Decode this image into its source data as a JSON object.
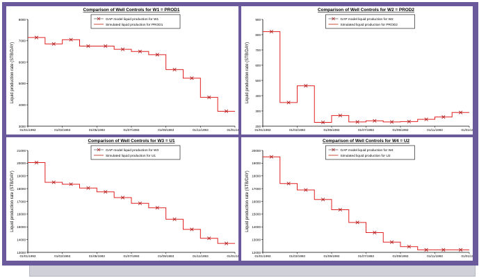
{
  "chart_data": [
    {
      "type": "line",
      "title": "Comparison of Well Controls for W1 = PROD1",
      "ylabel": "Liquid production rate (STB/DAY)",
      "x_ticks": [
        "01/01/1993",
        "01/03/1993",
        "01/05/1993",
        "01/07/1993",
        "01/09/1993",
        "01/11/1993",
        "01/01/1994"
      ],
      "y_ticks": [
        "3000",
        "4000",
        "5000",
        "6000",
        "7000",
        "8000"
      ],
      "ylim": [
        3000,
        8000
      ],
      "xlim": [
        0,
        12
      ],
      "grid": false,
      "legend_position": "top",
      "colors": {
        "marker": "#b02222",
        "step": "#e02020",
        "legend_sim": "#c23a20"
      },
      "series": [
        {
          "name": "GAP model liquid production for W1",
          "x": [
            0.5,
            1.5,
            2.5,
            3.5,
            4.5,
            5.5,
            6.5,
            7.5,
            8.5,
            9.5,
            10.5,
            11.5
          ],
          "y": [
            7150,
            6850,
            7050,
            6750,
            6750,
            6600,
            6500,
            6350,
            5650,
            5250,
            4350,
            3700
          ]
        },
        {
          "name": "Simulated liquid production for PROD1",
          "steps": [
            7150,
            6850,
            7050,
            6750,
            6750,
            6600,
            6500,
            6350,
            5650,
            5250,
            4350,
            3700
          ]
        }
      ]
    },
    {
      "type": "line",
      "title": "Comparison of Well Controls for W2 = PROD2",
      "ylabel": "Liquid production rate (STB/DAY)",
      "x_ticks": [
        "01/01/1993",
        "01/03/1993",
        "01/05/1993",
        "01/07/1993",
        "01/09/1993",
        "01/11/1993",
        "01/01/1994"
      ],
      "y_ticks": [
        "200",
        "300",
        "400",
        "500",
        "600",
        "700",
        "800",
        "900"
      ],
      "ylim": [
        200,
        900
      ],
      "xlim": [
        0,
        12
      ],
      "grid": false,
      "legend_position": "top",
      "colors": {
        "marker": "#b02222",
        "step": "#e02020",
        "legend_sim": "#c23a20"
      },
      "series": [
        {
          "name": "GAP model liquid production for W2",
          "x": [
            0.5,
            1.5,
            2.5,
            3.5,
            4.5,
            5.5,
            6.5,
            7.5,
            8.5,
            9.5,
            10.5,
            11.5
          ],
          "y": [
            820,
            355,
            465,
            225,
            270,
            228,
            235,
            228,
            230,
            245,
            260,
            290
          ]
        },
        {
          "name": "Simulated liquid production for PROD2",
          "steps": [
            820,
            355,
            465,
            225,
            270,
            228,
            235,
            228,
            230,
            245,
            260,
            290
          ]
        }
      ]
    },
    {
      "type": "line",
      "title": "Comparison of Well Controls for W3 = U1",
      "ylabel": "Liquid production rate (STB/DAY)",
      "x_ticks": [
        "01/01/1993",
        "01/03/1993",
        "01/05/1993",
        "01/07/1993",
        "01/09/1993",
        "01/11/1993",
        "01/01/1994"
      ],
      "y_ticks": [
        "13000",
        "14000",
        "15000",
        "16000",
        "17000",
        "18000",
        "19000",
        "20000",
        "21000"
      ],
      "ylim": [
        13000,
        21000
      ],
      "xlim": [
        0,
        12
      ],
      "grid": false,
      "legend_position": "top",
      "colors": {
        "marker": "#b02222",
        "step": "#e02020",
        "legend_sim": "#c23a20"
      },
      "series": [
        {
          "name": "GAP model liquid production for W3",
          "x": [
            0.5,
            1.5,
            2.5,
            3.5,
            4.5,
            5.5,
            6.5,
            7.5,
            8.5,
            9.5,
            10.5,
            11.5
          ],
          "y": [
            20050,
            18500,
            18350,
            18050,
            17750,
            17300,
            16850,
            16500,
            15600,
            14800,
            14100,
            13700
          ]
        },
        {
          "name": "Simulated liquid production for U1",
          "steps": [
            20050,
            18500,
            18350,
            18050,
            17750,
            17300,
            16850,
            16500,
            15600,
            14800,
            14100,
            13700
          ]
        }
      ]
    },
    {
      "type": "line",
      "title": "Comparison of Well Controls for W4 = U2",
      "ylabel": "Liquid production rate (STB/DAY)",
      "x_ticks": [
        "01/01/1993",
        "01/03/1993",
        "01/05/1993",
        "01/07/1993",
        "01/09/1993",
        "01/11/1993",
        "01/01/1994"
      ],
      "y_ticks": [
        "12000",
        "13000",
        "14000",
        "15000",
        "16000",
        "17000",
        "18000",
        "19000",
        "20000"
      ],
      "ylim": [
        12000,
        20000
      ],
      "xlim": [
        0,
        12
      ],
      "grid": false,
      "legend_position": "top",
      "colors": {
        "marker": "#b02222",
        "step": "#e02020",
        "legend_sim": "#c23a20"
      },
      "series": [
        {
          "name": "GAP model liquid production for W4",
          "x": [
            0.5,
            1.5,
            2.5,
            3.5,
            4.5,
            5.5,
            6.5,
            7.5,
            8.5,
            9.5,
            10.5,
            11.5
          ],
          "y": [
            19500,
            17400,
            16900,
            16150,
            15350,
            14350,
            13550,
            12800,
            12450,
            12200,
            12200,
            12200
          ]
        },
        {
          "name": "Simulated liquid production for U2",
          "steps": [
            19500,
            17400,
            16900,
            16150,
            15350,
            14350,
            13550,
            12800,
            12450,
            12200,
            12200,
            12200
          ]
        }
      ]
    }
  ]
}
